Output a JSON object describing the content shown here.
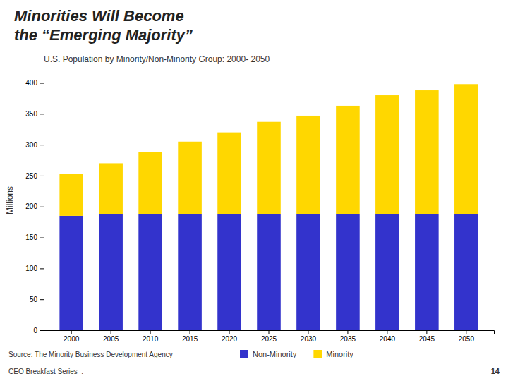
{
  "chart_data": {
    "type": "bar",
    "stacked": true,
    "title": [
      "Minorities Will Become",
      "the “Emerging Majority”"
    ],
    "subtitle": "U.S. Population by Minority/Non-Minority Group: 2000- 2050",
    "ylabel": "Millions",
    "categories": [
      "2000",
      "2005",
      "2010",
      "2015",
      "2020",
      "2025",
      "2030",
      "2035",
      "2040",
      "2045",
      "2050"
    ],
    "series": [
      {
        "name": "Non-Minority",
        "color": "#3333CC",
        "values": [
          185,
          188,
          188,
          188,
          188,
          188,
          188,
          188,
          188,
          188,
          188
        ]
      },
      {
        "name": "Minority",
        "color": "#FFD700",
        "values": [
          68,
          82,
          100,
          117,
          132,
          149,
          159,
          175,
          192,
          200,
          210
        ]
      }
    ],
    "ylim": [
      0,
      420
    ],
    "yticks": [
      0,
      50,
      100,
      150,
      200,
      250,
      300,
      350,
      400
    ],
    "grid": false,
    "legend": "bottom",
    "annotations": [
      "Source: The Minority Business Development Agency",
      "CEO Breakfast Series  .",
      "14"
    ]
  }
}
